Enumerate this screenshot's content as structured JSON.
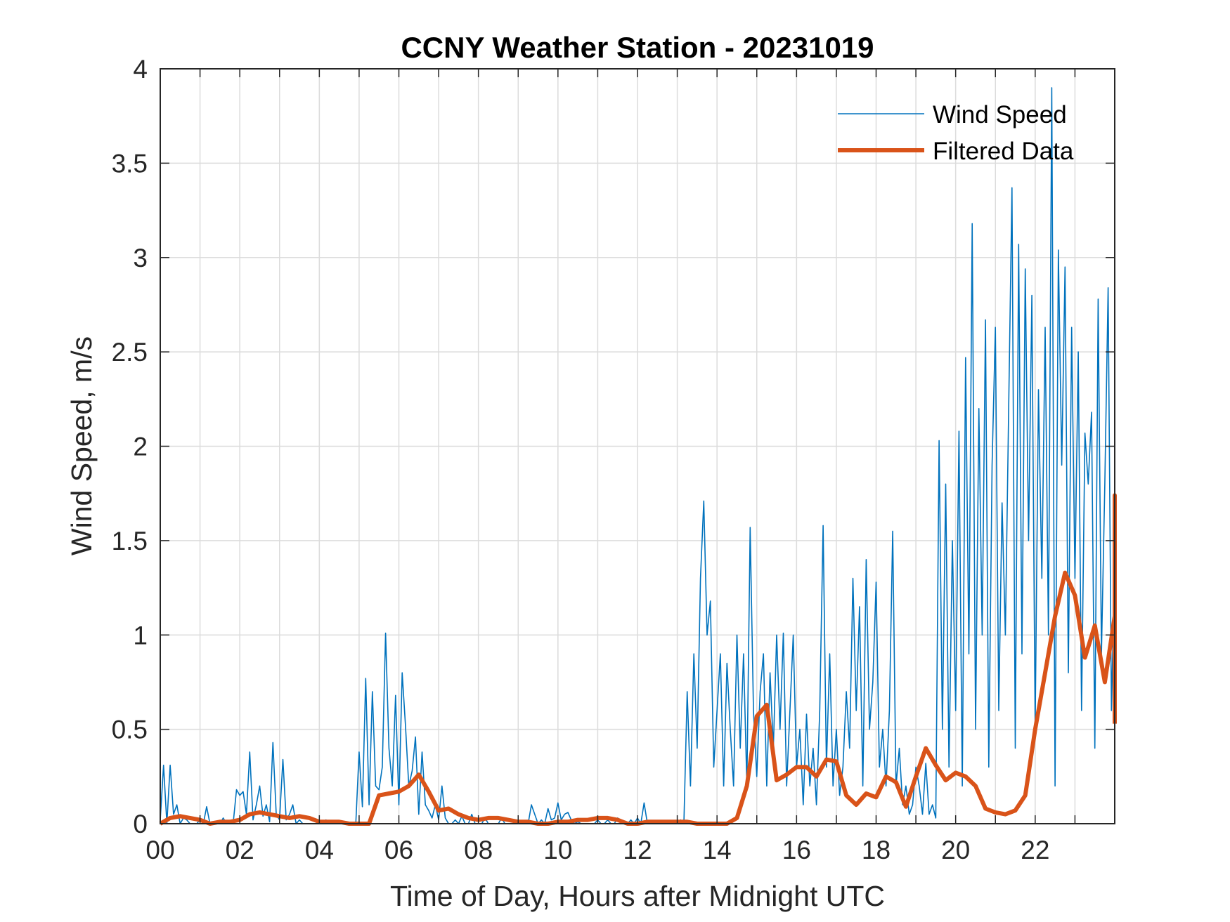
{
  "chart_data": {
    "type": "line",
    "title": "CCNY Weather Station - 20231019",
    "xlabel": "Time of Day, Hours after Midnight UTC",
    "ylabel": "Wind Speed, m/s",
    "xlim": [
      0,
      24
    ],
    "ylim": [
      0,
      4
    ],
    "x_ticks": [
      0,
      2,
      4,
      6,
      8,
      10,
      12,
      14,
      16,
      18,
      20,
      22
    ],
    "x_tick_labels": [
      "00",
      "02",
      "04",
      "06",
      "08",
      "10",
      "12",
      "14",
      "16",
      "18",
      "20",
      "22"
    ],
    "y_ticks": [
      0,
      0.5,
      1,
      1.5,
      2,
      2.5,
      3,
      3.5,
      4
    ],
    "y_tick_labels": [
      "0",
      "0.5",
      "1",
      "1.5",
      "2",
      "2.5",
      "3",
      "3.5",
      "4"
    ],
    "grid": true,
    "x_minor_grid_step_hours": 1,
    "legend_position": "top-right",
    "series": [
      {
        "name": "Wind Speed",
        "color": "#0072BD",
        "x_step_hours": 0.0833333,
        "values": [
          0.02,
          0.31,
          0,
          0.31,
          0.05,
          0.1,
          0,
          0.03,
          0.02,
          0,
          0,
          0,
          0.02,
          0,
          0.09,
          0,
          0.01,
          0,
          0,
          0.03,
          0,
          0,
          0,
          0.18,
          0.15,
          0.17,
          0.05,
          0.38,
          0.02,
          0.1,
          0.2,
          0.04,
          0.1,
          0.01,
          0.43,
          0.05,
          0.02,
          0.34,
          0.02,
          0.05,
          0.1,
          0,
          0.02,
          0,
          0,
          0,
          0,
          0,
          0,
          0,
          0.02,
          0,
          0,
          0,
          0,
          0,
          0,
          0,
          0,
          0,
          0.38,
          0.09,
          0.77,
          0.1,
          0.7,
          0.2,
          0.18,
          0.3,
          1.01,
          0.4,
          0.2,
          0.68,
          0.1,
          0.8,
          0.52,
          0.2,
          0.28,
          0.46,
          0.05,
          0.38,
          0.1,
          0.07,
          0.03,
          0.1,
          0.02,
          0.2,
          0.03,
          0,
          0,
          0.02,
          0,
          0.04,
          0,
          0,
          0.05,
          0,
          0,
          0,
          0.03,
          0,
          0,
          0,
          0,
          0.03,
          0,
          0,
          0,
          0,
          0.01,
          0,
          0,
          0,
          0.1,
          0.05,
          0,
          0.02,
          0,
          0.08,
          0.02,
          0.03,
          0.11,
          0.02,
          0.05,
          0.06,
          0.02,
          0,
          0.01,
          0,
          0,
          0,
          0,
          0,
          0.02,
          0,
          0,
          0.02,
          0,
          0,
          0.03,
          0.02,
          0,
          0,
          0.02,
          0,
          0.03,
          0,
          0.11,
          0,
          0,
          0,
          0,
          0.01,
          0,
          0,
          0,
          0,
          0,
          0.02,
          0,
          0.7,
          0.2,
          0.9,
          0.4,
          1.3,
          1.71,
          1.0,
          1.18,
          0.3,
          0.6,
          0.9,
          0.2,
          0.85,
          0.5,
          0.2,
          1.0,
          0.4,
          0.9,
          0.2,
          1.57,
          0.6,
          0.25,
          0.7,
          0.9,
          0.2,
          0.8,
          0.4,
          1.0,
          0.5,
          1.01,
          0.2,
          0.6,
          1.0,
          0.3,
          0.5,
          0.1,
          0.58,
          0.2,
          0.4,
          0.1,
          0.6,
          1.58,
          0.3,
          0.9,
          0.2,
          0.5,
          0.15,
          0.3,
          0.7,
          0.4,
          1.3,
          0.6,
          1.15,
          0.2,
          1.4,
          0.5,
          0.75,
          1.28,
          0.3,
          0.5,
          0.2,
          0.6,
          1.55,
          0.2,
          0.4,
          0.1,
          0.2,
          0.05,
          0.1,
          0.3,
          0.2,
          0.05,
          0.32,
          0.05,
          0.1,
          0.03,
          2.03,
          0.5,
          1.8,
          0.3,
          1.5,
          0.6,
          2.08,
          0.2,
          2.47,
          0.9,
          3.18,
          0.5,
          2.2,
          1.0,
          2.67,
          0.3,
          1.9,
          2.63,
          0.6,
          1.7,
          1.0,
          2.2,
          3.37,
          0.4,
          3.07,
          0.9,
          2.94,
          1.5,
          2.8,
          0.5,
          2.3,
          1.3,
          2.63,
          1.0,
          3.9,
          0.2,
          3.04,
          1.9,
          2.95,
          0.8,
          2.63,
          1.3,
          2.5,
          0.6,
          2.07,
          1.8,
          2.18,
          0.4,
          2.78,
          0.9,
          1.8,
          2.84,
          0.6,
          1.4,
          0.3,
          1.56,
          0.8,
          1.32,
          0.2,
          0.9
        ]
      },
      {
        "name": "Filtered Data",
        "color": "#D95319",
        "x_step_hours": 0.25,
        "values": [
          0,
          0.03,
          0.04,
          0.03,
          0.02,
          0,
          0.01,
          0.01,
          0.02,
          0.05,
          0.06,
          0.05,
          0.04,
          0.03,
          0.04,
          0.03,
          0.01,
          0.01,
          0.01,
          0,
          0,
          0.0,
          0.15,
          0.16,
          0.17,
          0.2,
          0.26,
          0.17,
          0.07,
          0.08,
          0.05,
          0.03,
          0.02,
          0.03,
          0.03,
          0.02,
          0.01,
          0.01,
          0.0,
          0,
          0.01,
          0.01,
          0.02,
          0.02,
          0.03,
          0.03,
          0.02,
          0.0,
          0,
          0.01,
          0.01,
          0.01,
          0.01,
          0.01,
          0.0,
          0,
          0,
          0,
          0.03,
          0.2,
          0.57,
          0.63,
          0.23,
          0.26,
          0.3,
          0.3,
          0.25,
          0.34,
          0.33,
          0.15,
          0.1,
          0.16,
          0.14,
          0.25,
          0.22,
          0.09,
          0.25,
          0.4,
          0.31,
          0.23,
          0.27,
          0.25,
          0.2,
          0.08,
          0.06,
          0.05,
          0.07,
          0.15,
          0.5,
          0.8,
          1.1,
          1.33,
          1.21,
          0.88,
          1.05,
          0.75,
          1.1,
          1.58,
          1.0,
          1.2,
          1.0,
          1.5,
          1.6,
          1.74,
          1.3,
          0.85,
          0.95,
          1.0,
          1.2,
          1.02,
          0.72,
          0.53
        ]
      }
    ]
  }
}
